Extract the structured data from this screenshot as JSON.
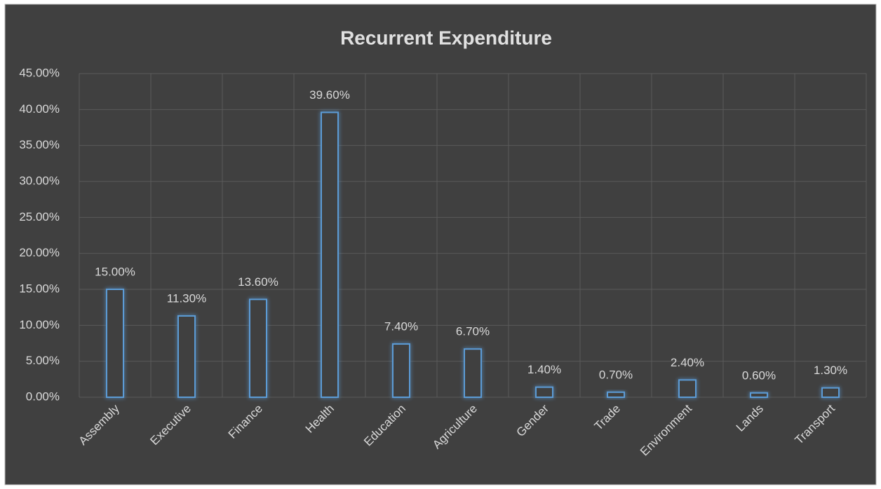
{
  "chart_data": {
    "type": "bar",
    "title": "Recurrent Expenditure",
    "categories": [
      "Assembly",
      "Executive",
      "Finance",
      "Health",
      "Education",
      "Agriculture",
      "Gender",
      "Trade",
      "Environment",
      "Lands",
      "Transport"
    ],
    "values": [
      15.0,
      11.3,
      13.6,
      39.6,
      7.4,
      6.7,
      1.4,
      0.7,
      2.4,
      0.6,
      1.3
    ],
    "value_labels": [
      "15.00%",
      "11.30%",
      "13.60%",
      "39.60%",
      "7.40%",
      "6.70%",
      "1.40%",
      "0.70%",
      "2.40%",
      "0.60%",
      "1.30%"
    ],
    "color": "#5b9bd5",
    "ylim": [
      0,
      45
    ],
    "yticks": [
      {
        "value": 0,
        "label": "0.00%"
      },
      {
        "value": 5,
        "label": "5.00%"
      },
      {
        "value": 10,
        "label": "10.00%"
      },
      {
        "value": 15,
        "label": "15.00%"
      },
      {
        "value": 20,
        "label": "20.00%"
      },
      {
        "value": 25,
        "label": "25.00%"
      },
      {
        "value": 30,
        "label": "30.00%"
      },
      {
        "value": 35,
        "label": "35.00%"
      },
      {
        "value": 40,
        "label": "40.00%"
      },
      {
        "value": 45,
        "label": "45.00%"
      }
    ],
    "grid": true
  }
}
